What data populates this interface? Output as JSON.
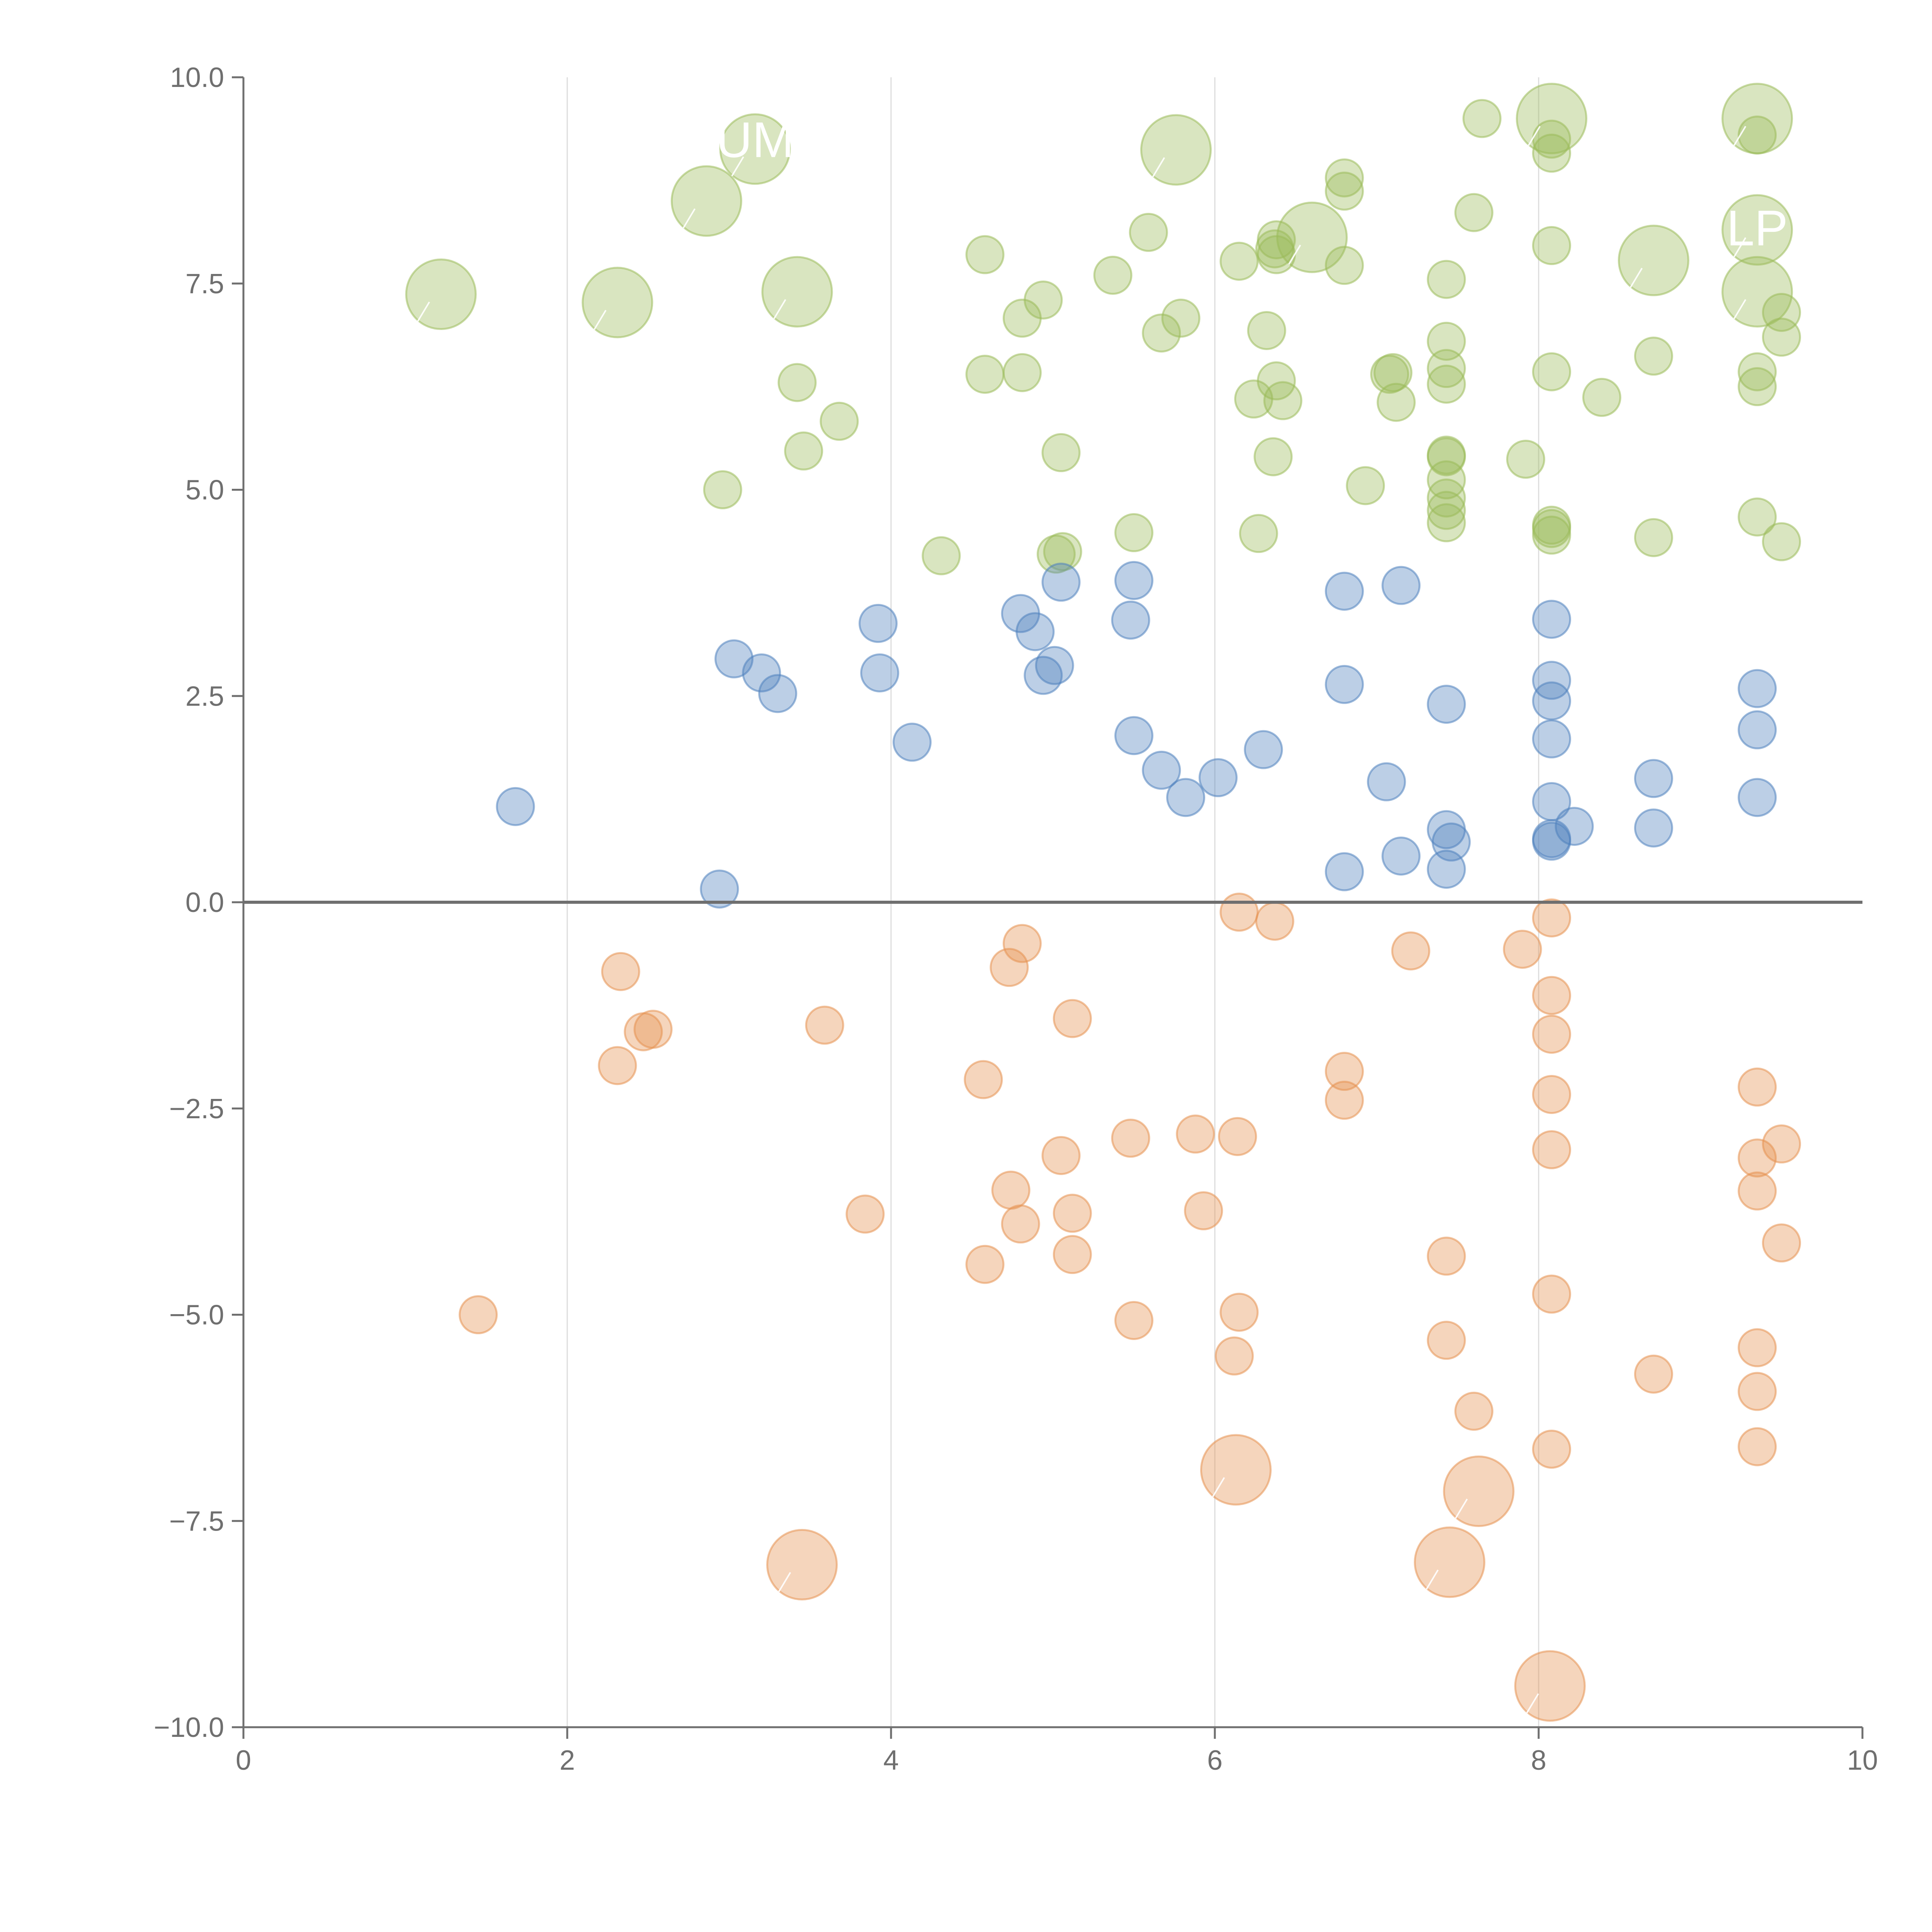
{
  "chart_data": {
    "type": "scatter",
    "title": "",
    "xlabel": "",
    "ylabel": "",
    "xlim": [
      0,
      10
    ],
    "ylim": [
      -10,
      10
    ],
    "x_ticks": [
      0,
      2,
      4,
      6,
      8,
      10
    ],
    "x_tick_labels": [
      "0",
      "2",
      "4",
      "6",
      "8",
      "10"
    ],
    "y_ticks": [
      10,
      7.5,
      5,
      2.5,
      0,
      -2.5,
      -5,
      -7.5,
      -10
    ],
    "y_tick_labels": [
      "10.0",
      "7.5",
      "5.0",
      "2.5",
      "0.0",
      "−2.5",
      "−5.0",
      "−7.5",
      "−10.0"
    ],
    "vertical_gridlines": [
      2,
      4,
      6,
      8
    ],
    "zero_line": 0,
    "colors": {
      "green": "#9bbb59",
      "blue": "#4f81bd",
      "orange": "#e69150"
    },
    "series": [
      {
        "name": "green",
        "color": "#9bbb59",
        "points": [
          [
            2.96,
            5.0
          ],
          [
            3.42,
            6.3
          ],
          [
            3.46,
            5.47
          ],
          [
            3.68,
            5.83
          ],
          [
            4.31,
            4.2
          ],
          [
            4.58,
            6.4
          ],
          [
            4.58,
            7.85
          ],
          [
            4.81,
            7.08
          ],
          [
            4.81,
            6.42
          ],
          [
            4.94,
            7.3
          ],
          [
            5.05,
            5.45
          ],
          [
            5.02,
            4.22
          ],
          [
            5.06,
            4.25
          ],
          [
            5.37,
            7.6
          ],
          [
            5.5,
            4.48
          ],
          [
            5.59,
            8.12
          ],
          [
            5.67,
            6.9
          ],
          [
            5.79,
            7.08
          ],
          [
            6.15,
            7.77
          ],
          [
            6.27,
            4.47
          ],
          [
            6.24,
            6.1
          ],
          [
            6.32,
            6.93
          ],
          [
            6.36,
            5.4
          ],
          [
            6.38,
            8.03
          ],
          [
            6.37,
            7.92
          ],
          [
            6.38,
            7.85
          ],
          [
            6.38,
            6.32
          ],
          [
            6.42,
            6.08
          ],
          [
            6.8,
            8.78
          ],
          [
            6.8,
            8.62
          ],
          [
            6.8,
            7.72
          ],
          [
            6.93,
            5.05
          ],
          [
            7.08,
            6.4
          ],
          [
            7.1,
            6.42
          ],
          [
            7.12,
            6.06
          ],
          [
            7.43,
            7.55
          ],
          [
            7.43,
            6.8
          ],
          [
            7.43,
            6.47
          ],
          [
            7.43,
            6.28
          ],
          [
            7.43,
            5.42
          ],
          [
            7.43,
            5.4
          ],
          [
            7.43,
            5.12
          ],
          [
            7.43,
            4.9
          ],
          [
            7.43,
            4.75
          ],
          [
            7.43,
            4.6
          ],
          [
            7.6,
            8.36
          ],
          [
            7.65,
            9.5
          ],
          [
            7.92,
            5.37
          ],
          [
            8.08,
            9.25
          ],
          [
            8.08,
            9.08
          ],
          [
            8.08,
            7.96
          ],
          [
            8.08,
            6.43
          ],
          [
            8.08,
            4.57
          ],
          [
            8.08,
            4.53
          ],
          [
            8.08,
            4.45
          ],
          [
            8.39,
            6.12
          ],
          [
            8.71,
            6.62
          ],
          [
            8.71,
            4.42
          ],
          [
            9.35,
            9.3
          ],
          [
            9.35,
            6.43
          ],
          [
            9.35,
            6.25
          ],
          [
            9.35,
            4.67
          ],
          [
            9.5,
            7.15
          ],
          [
            9.5,
            6.85
          ],
          [
            9.5,
            4.37
          ]
        ],
        "large_points": [
          [
            1.22,
            7.37
          ],
          [
            2.31,
            7.27
          ],
          [
            2.86,
            8.5
          ],
          [
            3.16,
            9.13
          ],
          [
            3.42,
            7.4
          ],
          [
            5.76,
            9.12
          ],
          [
            6.6,
            8.06
          ],
          [
            8.08,
            9.5
          ],
          [
            8.71,
            7.78
          ],
          [
            9.35,
            9.5
          ],
          [
            9.35,
            8.15
          ],
          [
            9.35,
            7.4
          ]
        ]
      },
      {
        "name": "blue",
        "color": "#4f81bd",
        "points": [
          [
            1.68,
            1.16
          ],
          [
            2.94,
            0.16
          ],
          [
            3.03,
            2.95
          ],
          [
            3.2,
            2.78
          ],
          [
            3.3,
            2.53
          ],
          [
            3.92,
            3.38
          ],
          [
            3.93,
            2.78
          ],
          [
            4.13,
            1.94
          ],
          [
            4.8,
            3.5
          ],
          [
            4.89,
            3.28
          ],
          [
            4.94,
            2.75
          ],
          [
            5.01,
            2.87
          ],
          [
            5.05,
            3.88
          ],
          [
            5.48,
            3.42
          ],
          [
            5.5,
            3.9
          ],
          [
            5.5,
            2.02
          ],
          [
            5.67,
            1.6
          ],
          [
            5.82,
            1.27
          ],
          [
            6.02,
            1.51
          ],
          [
            6.3,
            1.85
          ],
          [
            6.8,
            3.77
          ],
          [
            6.8,
            2.64
          ],
          [
            6.8,
            0.37
          ],
          [
            7.06,
            1.46
          ],
          [
            7.15,
            3.84
          ],
          [
            7.15,
            0.56
          ],
          [
            7.43,
            2.4
          ],
          [
            7.43,
            0.88
          ],
          [
            7.46,
            0.73
          ],
          [
            7.43,
            0.4
          ],
          [
            8.08,
            3.43
          ],
          [
            8.08,
            2.69
          ],
          [
            8.08,
            2.44
          ],
          [
            8.08,
            1.98
          ],
          [
            8.08,
            1.22
          ],
          [
            8.08,
            0.77
          ],
          [
            8.08,
            0.74
          ],
          [
            8.22,
            0.92
          ],
          [
            8.71,
            1.5
          ],
          [
            8.71,
            0.9
          ],
          [
            9.35,
            2.59
          ],
          [
            9.35,
            2.09
          ],
          [
            9.35,
            1.27
          ]
        ],
        "large_points": []
      },
      {
        "name": "orange",
        "color": "#e69150",
        "points": [
          [
            1.45,
            -5.0
          ],
          [
            2.31,
            -1.98
          ],
          [
            2.33,
            -0.84
          ],
          [
            2.47,
            -1.57
          ],
          [
            2.53,
            -1.54
          ],
          [
            3.59,
            -1.49
          ],
          [
            3.84,
            -3.78
          ],
          [
            4.57,
            -2.15
          ],
          [
            4.58,
            -4.39
          ],
          [
            4.73,
            -0.79
          ],
          [
            4.74,
            -3.49
          ],
          [
            4.8,
            -3.9
          ],
          [
            4.81,
            -0.5
          ],
          [
            5.05,
            -3.07
          ],
          [
            5.12,
            -1.41
          ],
          [
            5.12,
            -3.77
          ],
          [
            5.12,
            -4.27
          ],
          [
            5.48,
            -2.86
          ],
          [
            5.5,
            -5.07
          ],
          [
            5.88,
            -2.81
          ],
          [
            5.93,
            -3.74
          ],
          [
            6.12,
            -5.5
          ],
          [
            6.15,
            -4.97
          ],
          [
            6.14,
            -2.84
          ],
          [
            6.15,
            -0.12
          ],
          [
            6.37,
            -0.23
          ],
          [
            6.8,
            -2.05
          ],
          [
            6.8,
            -2.4
          ],
          [
            7.21,
            -0.59
          ],
          [
            7.43,
            -4.29
          ],
          [
            7.43,
            -5.31
          ],
          [
            7.6,
            -6.17
          ],
          [
            7.9,
            -0.57
          ],
          [
            8.08,
            -0.19
          ],
          [
            8.08,
            -1.13
          ],
          [
            8.08,
            -1.6
          ],
          [
            8.08,
            -2.33
          ],
          [
            8.08,
            -3.0
          ],
          [
            8.08,
            -4.75
          ],
          [
            8.08,
            -6.63
          ],
          [
            8.71,
            -5.72
          ],
          [
            9.35,
            -2.24
          ],
          [
            9.35,
            -3.1
          ],
          [
            9.35,
            -3.5
          ],
          [
            9.35,
            -5.4
          ],
          [
            9.35,
            -5.93
          ],
          [
            9.35,
            -6.6
          ],
          [
            9.5,
            -2.93
          ],
          [
            9.5,
            -4.13
          ]
        ],
        "large_points": [
          [
            3.45,
            -8.03
          ],
          [
            6.13,
            -6.88
          ],
          [
            7.45,
            -8.0
          ],
          [
            7.63,
            -7.14
          ],
          [
            8.07,
            -9.5
          ]
        ]
      }
    ],
    "visible_labels": [
      {
        "text": "UM",
        "x": 3.16,
        "y": 9.22
      },
      {
        "text": "LP",
        "x": 9.35,
        "y": 8.15
      }
    ]
  }
}
